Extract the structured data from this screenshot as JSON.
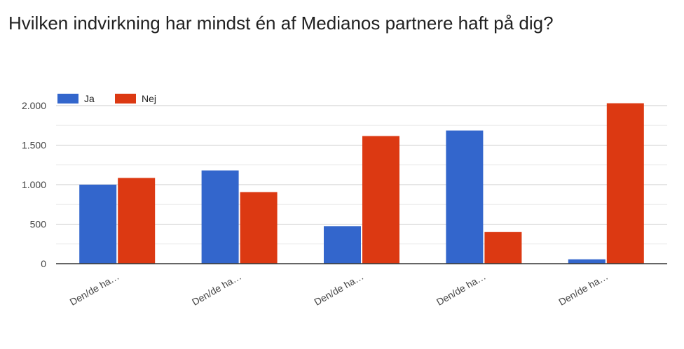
{
  "title": "Hvilken indvirkning har mindst én af Medianos partnere haft på dig?",
  "colors": {
    "Ja": "#3366cc",
    "Nej": "#dc3912",
    "grid": "#cccccc",
    "axis": "#333333"
  },
  "chart_data": {
    "type": "bar",
    "title": "Hvilken indvirkning har mindst én af Medianos partnere haft på dig?",
    "xlabel": "",
    "ylabel": "",
    "categories": [
      "Den/de ha…",
      "Den/de ha…",
      "Den/de ha…",
      "Den/de ha…",
      "Den/de ha…"
    ],
    "series": [
      {
        "name": "Ja",
        "values": [
          1000,
          1180,
          475,
          1685,
          55
        ]
      },
      {
        "name": "Nej",
        "values": [
          1085,
          905,
          1615,
          400,
          2030
        ]
      }
    ],
    "ylim": [
      0,
      2000
    ],
    "yticks": [
      0,
      500,
      1000,
      1500,
      2000
    ],
    "ytick_labels": [
      "0",
      "500",
      "1.000",
      "1.500",
      "2.000"
    ],
    "grid": true,
    "legend_position": "top-left"
  }
}
